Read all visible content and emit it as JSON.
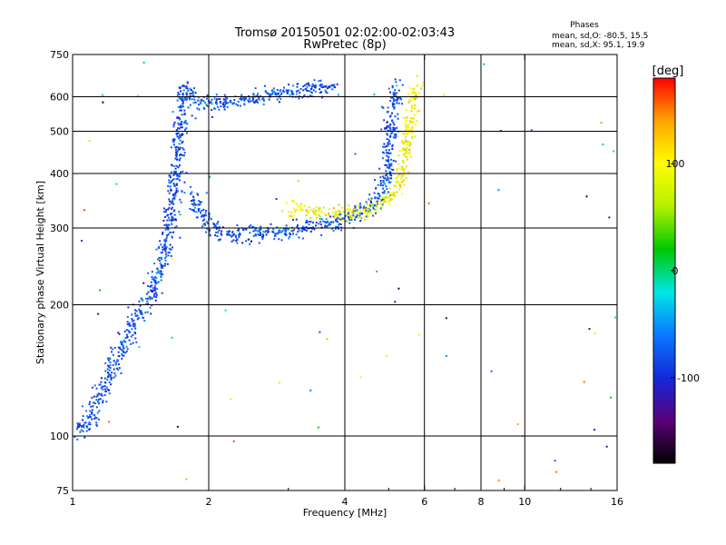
{
  "chart_data": {
    "type": "scatter",
    "title": "Tromsø 20150501 02:02:00-02:03:43",
    "subtitle": "RwPretec (8p)",
    "xlabel": "Frequency [MHz]",
    "ylabel": "Stationary phase Virtual Height [km]",
    "xscale": "log",
    "yscale": "log",
    "xlim": [
      1,
      16
    ],
    "ylim": [
      75,
      750
    ],
    "x_ticks": [
      1,
      2,
      4,
      6,
      8,
      10,
      16
    ],
    "y_ticks": [
      75,
      100,
      200,
      300,
      400,
      500,
      600,
      750
    ],
    "grid": true,
    "stats": {
      "title": "Phases",
      "line_o": "mean, sd,O: -80.5, 15.5",
      "line_x": "mean, sd,X:  95.1, 19.9"
    },
    "colorbar": {
      "label": "[deg]",
      "range": [
        -180,
        180
      ],
      "ticks": [
        100,
        0,
        -100
      ],
      "colors": [
        "#000000",
        "#5a0078",
        "#1428dc",
        "#0a78ff",
        "#00e6e6",
        "#00c800",
        "#b4f000",
        "#ffff00",
        "#ffa500",
        "#ff0000"
      ]
    },
    "o_trace": {
      "name": "O-mode",
      "phase_mean": -80.5,
      "points": [
        [
          1.0,
          103
        ],
        [
          1.05,
          104
        ],
        [
          1.1,
          112
        ],
        [
          1.15,
          125
        ],
        [
          1.2,
          140
        ],
        [
          1.3,
          165
        ],
        [
          1.4,
          195
        ],
        [
          1.5,
          215
        ],
        [
          1.55,
          240
        ],
        [
          1.6,
          270
        ],
        [
          1.62,
          300
        ],
        [
          1.65,
          340
        ],
        [
          1.68,
          380
        ],
        [
          1.7,
          430
        ],
        [
          1.72,
          500
        ],
        [
          1.74,
          580
        ],
        [
          1.75,
          630
        ],
        [
          1.8,
          600
        ],
        [
          1.9,
          585
        ],
        [
          2.0,
          575
        ],
        [
          2.2,
          585
        ],
        [
          2.4,
          595
        ],
        [
          2.6,
          602
        ],
        [
          2.8,
          610
        ],
        [
          3.0,
          618
        ],
        [
          3.2,
          625
        ],
        [
          3.5,
          630
        ],
        [
          3.8,
          636
        ],
        [
          1.8,
          360
        ],
        [
          1.9,
          330
        ],
        [
          2.0,
          305
        ],
        [
          2.1,
          292
        ],
        [
          2.3,
          290
        ],
        [
          2.6,
          293
        ],
        [
          3.0,
          298
        ],
        [
          3.5,
          305
        ],
        [
          4.0,
          316
        ],
        [
          4.5,
          335
        ],
        [
          4.8,
          360
        ],
        [
          4.95,
          420
        ],
        [
          5.05,
          520
        ],
        [
          5.1,
          600
        ],
        [
          5.15,
          640
        ]
      ],
      "points_unit": "[MHz, km]"
    },
    "x_trace": {
      "name": "X-mode",
      "phase_mean": 95.1,
      "points": [
        [
          3.0,
          335
        ],
        [
          3.3,
          330
        ],
        [
          3.6,
          328
        ],
        [
          4.0,
          325
        ],
        [
          4.4,
          330
        ],
        [
          4.8,
          340
        ],
        [
          5.1,
          360
        ],
        [
          5.3,
          400
        ],
        [
          5.4,
          440
        ],
        [
          5.5,
          500
        ],
        [
          5.6,
          560
        ],
        [
          5.7,
          620
        ],
        [
          5.75,
          650
        ]
      ],
      "points_unit": "[MHz, km]"
    }
  }
}
